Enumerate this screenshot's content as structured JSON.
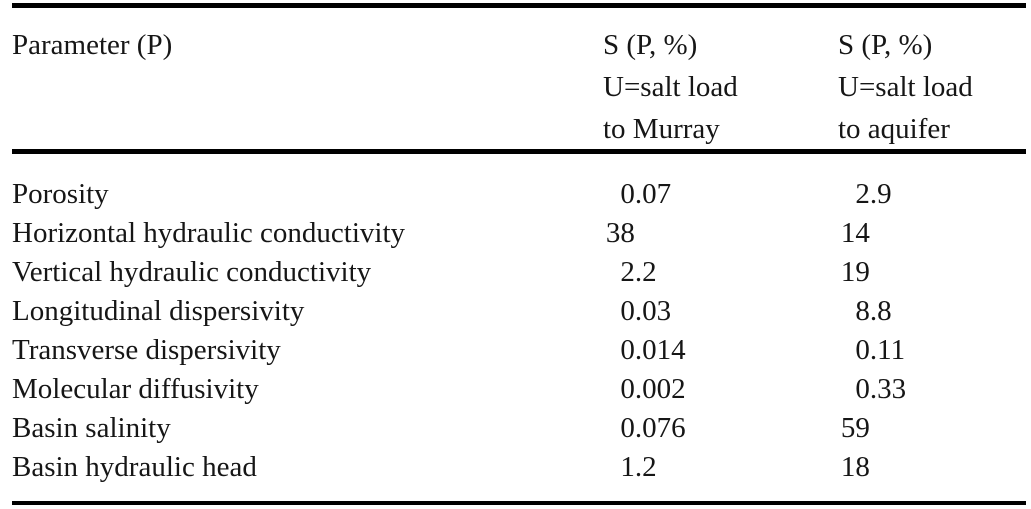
{
  "table": {
    "columns": [
      {
        "lines": [
          "Parameter (P)",
          "",
          ""
        ]
      },
      {
        "lines": [
          "S (P, %)",
          "U=salt load",
          "to Murray"
        ]
      },
      {
        "lines": [
          "S (P, %)",
          "U=salt load",
          "to aquifer"
        ]
      }
    ],
    "rows": [
      {
        "parameter": "Porosity",
        "murray": "0.07",
        "aquifer": "2.9"
      },
      {
        "parameter": "Horizontal hydraulic conductivity",
        "murray": "38",
        "aquifer": "14"
      },
      {
        "parameter": "Vertical hydraulic conductivity",
        "murray": "2.2",
        "aquifer": "19"
      },
      {
        "parameter": "Longitudinal dispersivity",
        "murray": "0.03",
        "aquifer": "8.8"
      },
      {
        "parameter": "Transverse dispersivity",
        "murray": "0.014",
        "aquifer": "0.11"
      },
      {
        "parameter": "Molecular diffusivity",
        "murray": "0.002",
        "aquifer": "0.33"
      },
      {
        "parameter": "Basin salinity",
        "murray": "0.076",
        "aquifer": "59"
      },
      {
        "parameter": "Basin hydraulic head",
        "murray": "1.2",
        "aquifer": "18"
      }
    ]
  },
  "colors": {
    "background": "#ffffff",
    "text": "#161616",
    "rule": "#000000"
  }
}
